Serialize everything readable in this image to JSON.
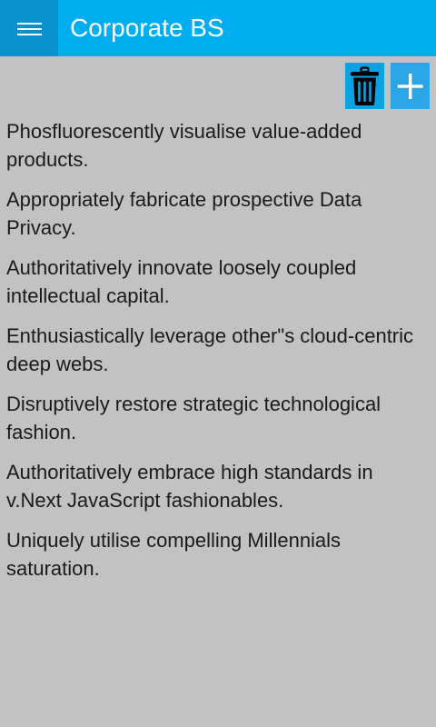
{
  "app": {
    "title": "Corporate BS"
  },
  "toolbar": {
    "delete_icon": "trash-icon",
    "add_icon": "plus-icon"
  },
  "phrases": [
    "Phosfluorescently visualise value-added products.",
    "Appropriately fabricate prospective Data Privacy.",
    "Authoritatively innovate loosely coupled intellectual capital.",
    "Enthusiastically leverage other\"s cloud-centric deep webs.",
    "Disruptively restore strategic technological fashion.",
    "Authoritatively embrace high standards in v.Next JavaScript fashionables.",
    "Uniquely utilise compelling Millennials saturation."
  ],
  "colors": {
    "titlebar": "#00adef",
    "menu_button": "#0792cb",
    "background": "#c2c2c2"
  }
}
